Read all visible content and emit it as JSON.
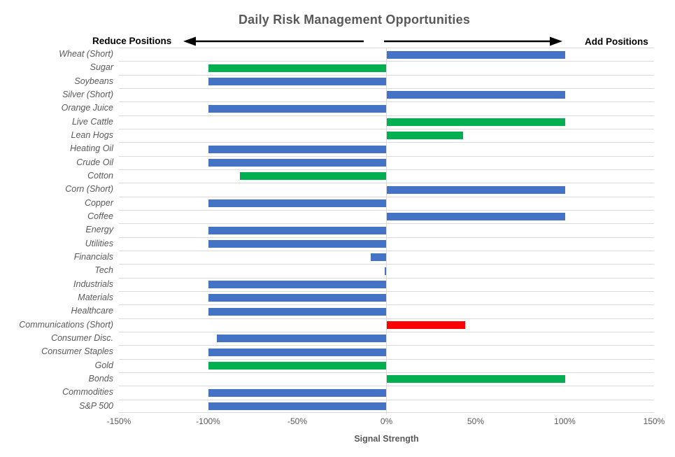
{
  "title": "Daily Risk Management Opportunities",
  "header": {
    "left_label": "Reduce Positions",
    "right_label": "Add Positions"
  },
  "axis": {
    "title": "Signal Strength",
    "tick_labels": [
      "-150%",
      "-100%",
      "-50%",
      "0%",
      "50%",
      "100%",
      "150%"
    ]
  },
  "palette": {
    "blue": "#4472C4",
    "green": "#00B050",
    "red": "#FF0000",
    "gridline": "#D9D9D9",
    "text_gray": "#595959",
    "arrow_black": "#000000"
  },
  "chart_data": {
    "type": "bar",
    "orientation": "horizontal",
    "title": "Daily Risk Management Opportunities",
    "xlabel": "Signal Strength",
    "xlim": [
      -150,
      150
    ],
    "unit": "percent",
    "grid": "horizontal-only",
    "annotations": [
      "Reduce Positions",
      "Add Positions"
    ],
    "categories": [
      "Wheat (Short)",
      "Sugar",
      "Soybeans",
      "Silver (Short)",
      "Orange Juice",
      "Live Cattle",
      "Lean Hogs",
      "Heating Oil",
      "Crude Oil",
      "Cotton",
      "Corn (Short)",
      "Copper",
      "Coffee",
      "Energy",
      "Utilities",
      "Financials",
      "Tech",
      "Industrials",
      "Materials",
      "Healthcare",
      "Communications (Short)",
      "Consumer Disc.",
      "Consumer Staples",
      "Gold",
      "Bonds",
      "Commodities",
      "S&P 500"
    ],
    "values": [
      100,
      -100,
      -100,
      100,
      -100,
      100,
      43,
      -100,
      -100,
      -82,
      100,
      -100,
      100,
      -100,
      -100,
      -9,
      -1,
      -100,
      -100,
      -100,
      44,
      -95,
      -100,
      -100,
      100,
      -100,
      -100
    ],
    "colors": [
      "blue",
      "green",
      "blue",
      "blue",
      "blue",
      "green",
      "green",
      "blue",
      "blue",
      "green",
      "blue",
      "blue",
      "blue",
      "blue",
      "blue",
      "blue",
      "blue",
      "blue",
      "blue",
      "blue",
      "red",
      "blue",
      "blue",
      "green",
      "green",
      "blue",
      "blue"
    ]
  }
}
